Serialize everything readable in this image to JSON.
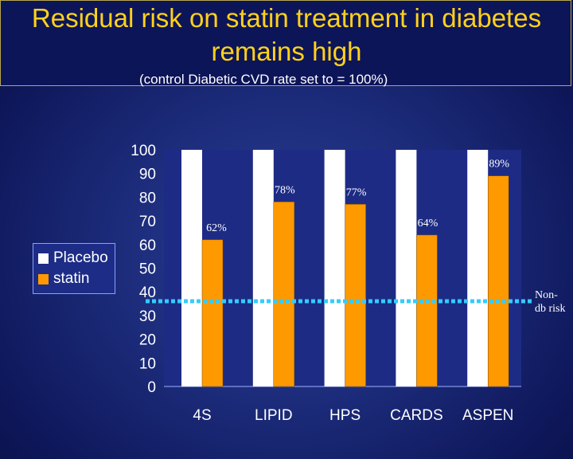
{
  "slide": {
    "title": "Residual risk on statin treatment in diabetes remains high",
    "subtitle": "(control Diabetic CVD rate set to = 100%)",
    "side_note": "Non-db risk"
  },
  "colors": {
    "placebo": "#ffffff",
    "statin": "#ff9900",
    "plot_bg": "#1d2b84",
    "reference_line": "#33ccff"
  },
  "chart_data": {
    "type": "bar",
    "categories": [
      "4S",
      "LIPID",
      "HPS",
      "CARDS",
      "ASPEN"
    ],
    "series": [
      {
        "name": "Placebo",
        "values": [
          100,
          100,
          100,
          100,
          100
        ]
      },
      {
        "name": "statin",
        "values": [
          62,
          78,
          77,
          64,
          89
        ]
      }
    ],
    "data_labels": [
      "62%",
      "78%",
      "77%",
      "64%",
      "89%"
    ],
    "ylim": [
      0,
      100
    ],
    "yticks": [
      0,
      10,
      20,
      30,
      40,
      50,
      60,
      70,
      80,
      90,
      100
    ],
    "reference_line": {
      "value": 35,
      "label": "Non-db risk",
      "style": "dotted"
    },
    "legend": {
      "position": "left",
      "entries": [
        "Placebo",
        "statin"
      ]
    },
    "title": "Residual risk on statin treatment in diabetes remains high",
    "xlabel": "",
    "ylabel": ""
  }
}
